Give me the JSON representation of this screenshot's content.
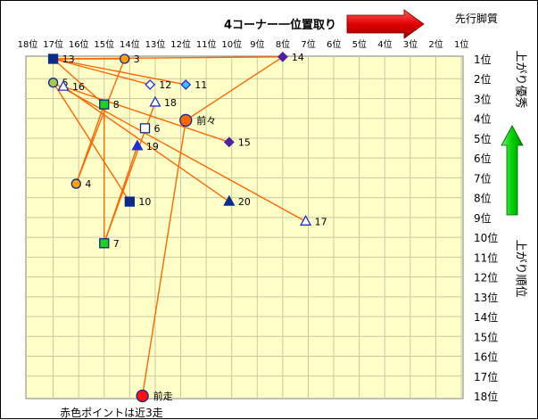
{
  "chart_data": {
    "type": "scatter",
    "title": "4コーナー一位置取り",
    "top_right_label": "先行脚質",
    "right_label_top": "上がり優秀",
    "right_label_bottom": "上がり順位",
    "footnote": "赤色ポイントは近3走",
    "x_axis": {
      "label": "4コーナー位置取り",
      "ticks": [
        "18位",
        "17位",
        "16位",
        "15位",
        "14位",
        "13位",
        "12位",
        "11位",
        "10位",
        "9位",
        "8位",
        "7位",
        "6位",
        "5位",
        "4位",
        "3位",
        "2位",
        "1位"
      ],
      "range": [
        18,
        1
      ]
    },
    "y_axis": {
      "label": "上がり順位",
      "ticks": [
        "1位",
        "2位",
        "3位",
        "4位",
        "5位",
        "6位",
        "7位",
        "8位",
        "9位",
        "10位",
        "11位",
        "12位",
        "13位",
        "14位",
        "15位",
        "16位",
        "17位",
        "18位"
      ],
      "range": [
        1,
        18
      ]
    },
    "colors": {
      "plot_bg": "#ffffc8",
      "grid": "#c8c8a0",
      "line": "#ff6600",
      "red_arrow": "#e80000",
      "green_arrow": "#00c000",
      "navy": "#0a2a8c",
      "blue": "#2030d0",
      "orange": "#ffa000",
      "purple": "#5020a0",
      "yellowgreen": "#a8c850",
      "green": "#20d020",
      "red": "#ff1010",
      "sky": "#40c0ff"
    },
    "points": [
      {
        "label": "13",
        "x": 17.0,
        "y": 1.0,
        "marker": "square",
        "fill": "#0a2a8c",
        "stroke": "#0a2a8c"
      },
      {
        "label": "3",
        "x": 14.2,
        "y": 1.0,
        "marker": "circle",
        "fill": "#ffa000",
        "stroke": "#0a2a8c"
      },
      {
        "label": "14",
        "x": 8.0,
        "y": 0.9,
        "marker": "diamond",
        "fill": "#5020a0",
        "stroke": "#5020a0"
      },
      {
        "label": "12",
        "x": 13.2,
        "y": 2.3,
        "marker": "diamond",
        "fill": "#ffffff",
        "stroke": "#2030d0"
      },
      {
        "label": "11",
        "x": 11.8,
        "y": 2.3,
        "marker": "diamond",
        "fill": "#40c0ff",
        "stroke": "#2030d0"
      },
      {
        "label": "5",
        "x": 17.0,
        "y": 2.2,
        "marker": "circle",
        "fill": "#a8c850",
        "stroke": "#0a2a8c"
      },
      {
        "label": "16",
        "x": 16.6,
        "y": 2.4,
        "marker": "triangle",
        "fill": "#ffffff",
        "stroke": "#2030d0"
      },
      {
        "label": "18",
        "x": 13.0,
        "y": 3.2,
        "marker": "triangle",
        "fill": "#ffffff",
        "stroke": "#2030d0"
      },
      {
        "label": "8",
        "x": 15.0,
        "y": 3.3,
        "marker": "square",
        "fill": "#20d020",
        "stroke": "#0a2a8c"
      },
      {
        "label": "前々",
        "x": 11.8,
        "y": 4.1,
        "marker": "circle",
        "fill": "#ff6600",
        "stroke": "#0a2a8c"
      },
      {
        "label": "6",
        "x": 13.4,
        "y": 4.5,
        "marker": "square",
        "fill": "#ffffff",
        "stroke": "#0a2a8c"
      },
      {
        "label": "15",
        "x": 10.1,
        "y": 5.2,
        "marker": "diamond",
        "fill": "#5020a0",
        "stroke": "#5020a0"
      },
      {
        "label": "19",
        "x": 13.7,
        "y": 5.4,
        "marker": "triangle",
        "fill": "#2030d0",
        "stroke": "#2030d0"
      },
      {
        "label": "4",
        "x": 16.1,
        "y": 7.3,
        "marker": "circle",
        "fill": "#ffa000",
        "stroke": "#0a2a8c"
      },
      {
        "label": "10",
        "x": 14.0,
        "y": 8.2,
        "marker": "square",
        "fill": "#0a2a8c",
        "stroke": "#0a2a8c"
      },
      {
        "label": "20",
        "x": 10.1,
        "y": 8.2,
        "marker": "triangle",
        "fill": "#0a2a8c",
        "stroke": "#0a2a8c"
      },
      {
        "label": "17",
        "x": 7.1,
        "y": 9.2,
        "marker": "triangle",
        "fill": "#ffffff",
        "stroke": "#2030d0"
      },
      {
        "label": "7",
        "x": 15.0,
        "y": 10.3,
        "marker": "square",
        "fill": "#20d020",
        "stroke": "#0a2a8c"
      },
      {
        "label": "前走",
        "x": 13.5,
        "y": 18.0,
        "marker": "circle",
        "fill": "#ff1010",
        "stroke": "#0a2a8c"
      }
    ],
    "connections": [
      [
        "13",
        "3"
      ],
      [
        "13",
        "14"
      ],
      [
        "13",
        "12"
      ],
      [
        "13",
        "11"
      ],
      [
        "13",
        "8"
      ],
      [
        "5",
        "10"
      ],
      [
        "5",
        "17"
      ],
      [
        "16",
        "15"
      ],
      [
        "16",
        "20"
      ],
      [
        "3",
        "4"
      ],
      [
        "4",
        "8"
      ],
      [
        "7",
        "8"
      ],
      [
        "7",
        "18"
      ],
      [
        "7",
        "19"
      ],
      [
        "前々",
        "14"
      ],
      [
        "前々",
        "前走"
      ]
    ]
  }
}
